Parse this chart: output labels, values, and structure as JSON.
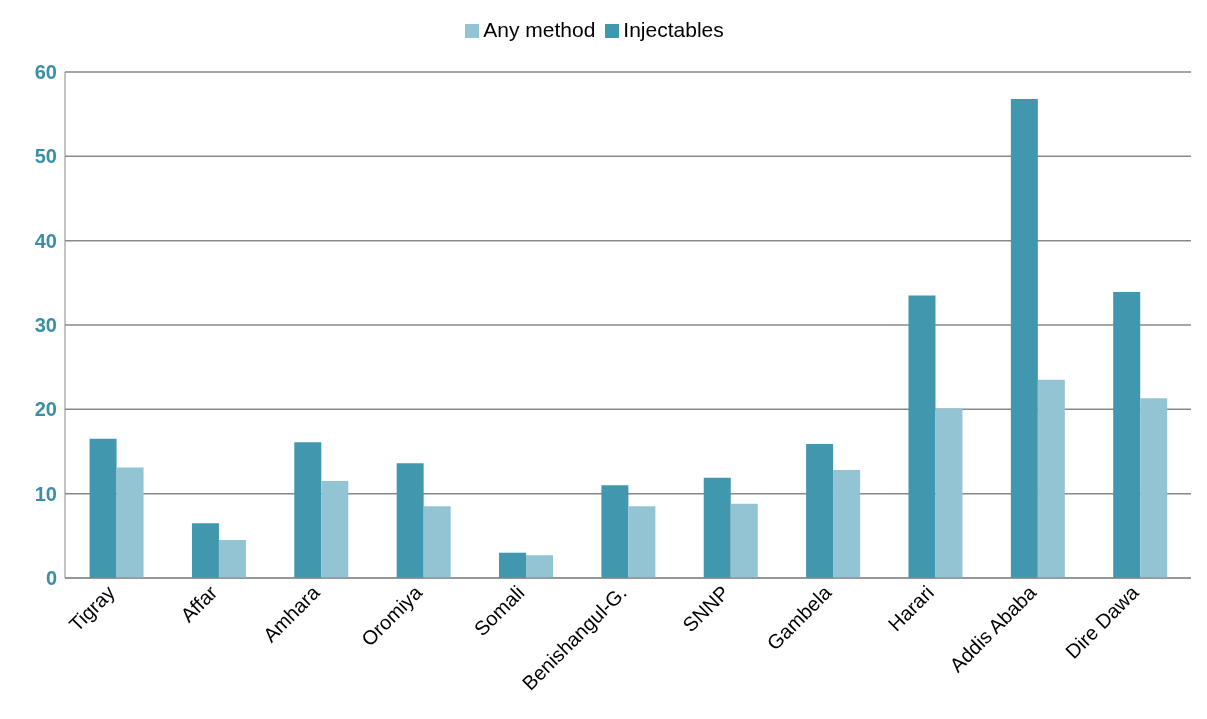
{
  "chart_data": {
    "type": "bar",
    "categories": [
      "Tigray",
      "Affar",
      "Amhara",
      "Oromiya",
      "Somali",
      "Benishangul-G.",
      "SNNP",
      "Gambela",
      "Harari",
      "Addis Ababa",
      "Dire Dawa"
    ],
    "series": [
      {
        "name": "Injectables",
        "color": "#4097ae",
        "values": [
          16.5,
          6.5,
          16.1,
          13.6,
          3.0,
          11.0,
          11.9,
          15.9,
          33.5,
          56.8,
          33.9
        ]
      },
      {
        "name": "Any method",
        "color": "#93c4d4",
        "values": [
          13.1,
          4.5,
          11.5,
          8.5,
          2.7,
          8.5,
          8.8,
          12.8,
          20.1,
          23.5,
          21.3
        ]
      }
    ],
    "ylim": [
      0,
      60
    ],
    "yticks": [
      0,
      10,
      20,
      30,
      40,
      50,
      60
    ],
    "grid": "y",
    "legend": "top"
  }
}
